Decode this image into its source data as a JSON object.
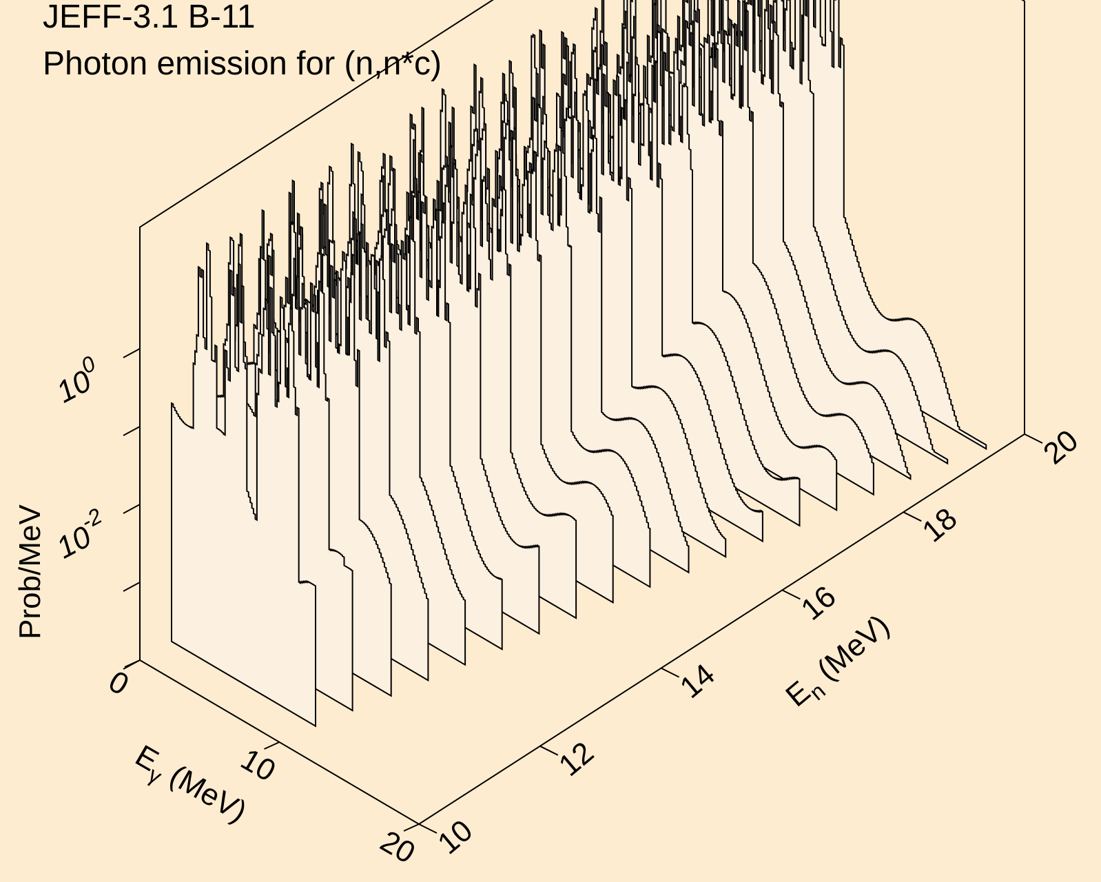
{
  "title": {
    "line1": "JEFF-3.1 B-11",
    "line2": "Photon emission for (n,n*c)"
  },
  "chart_data": {
    "type": "area",
    "title": "JEFF-3.1 B-11",
    "subtitle": "Photon emission for (n,n*c)",
    "z_label": "Prob/MeV",
    "x_label": {
      "main": "E",
      "sub": "γ",
      "rest": " (MeV)"
    },
    "y_label": {
      "main": "E",
      "sub": "n",
      "rest": " (MeV)"
    },
    "z_scale": "log",
    "z_ticks": [
      {
        "base": "10",
        "exp": "0"
      },
      {
        "base": "10",
        "exp": "-2"
      }
    ],
    "x_ticks": [
      "0",
      "10",
      "20"
    ],
    "y_ticks": [
      "10",
      "12",
      "14",
      "16",
      "18",
      "20"
    ],
    "x_range": [
      0,
      20
    ],
    "y_range": [
      10,
      20
    ],
    "z_range_log10": [
      -4,
      1
    ],
    "incident_energies_MeV": [
      10.5,
      11,
      11.5,
      12,
      12.5,
      13,
      13.5,
      14,
      14.5,
      15,
      15.5,
      16,
      16.5,
      17,
      17.5,
      18,
      18.5,
      19,
      19.5
    ],
    "spectra_description": "Each slice is a step histogram of photon energy E_gamma with sharp discrete lines (peaks near 10^0-10^1 Prob/MeV) on a continuum decaying toward high E_gamma",
    "peak_energies_MeV": [
      2.1,
      2.8,
      4.4,
      5.0,
      6.7,
      6.8,
      7.3,
      8.0,
      8.6
    ]
  },
  "colors": {
    "background": "#feecd0",
    "fill": "#fcf0e0",
    "line": "#000000"
  }
}
